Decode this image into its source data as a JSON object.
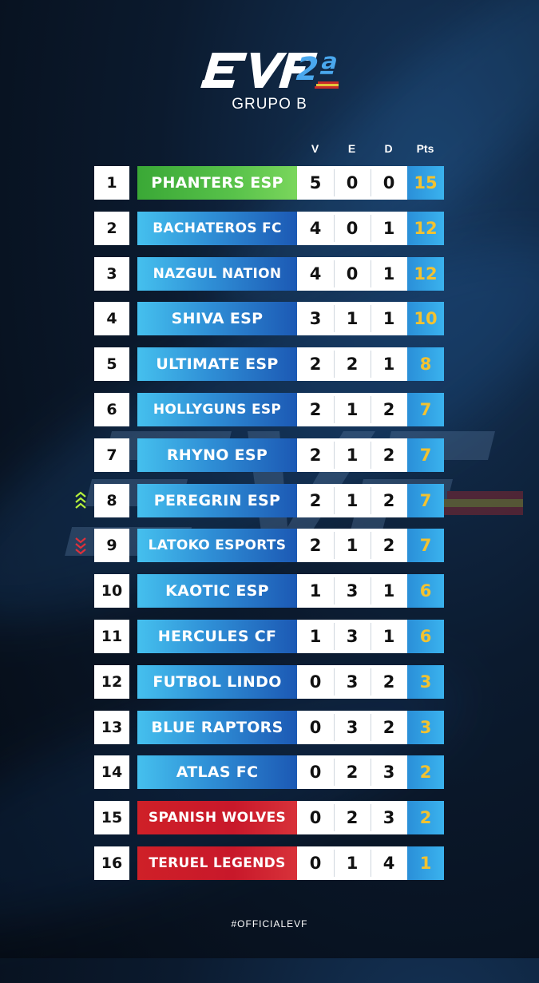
{
  "brand": {
    "logo_text": "EVF",
    "logo_suffix": "2ª"
  },
  "title": "GRUPO B",
  "columns": {
    "v": "V",
    "e": "E",
    "d": "D",
    "pts": "Pts"
  },
  "colors": {
    "promotion": "#58c24a",
    "relegation": "#cf2028",
    "team": "#2f8fd6",
    "points": "#f2c230",
    "arrow_up": "#b6f03c",
    "arrow_down": "#e0303a"
  },
  "standings": [
    {
      "pos": "1",
      "team": "PHANTERS ESP",
      "v": "5",
      "e": "0",
      "d": "0",
      "pts": "15"
    },
    {
      "pos": "2",
      "team": "BACHATEROS FC",
      "v": "4",
      "e": "0",
      "d": "1",
      "pts": "12"
    },
    {
      "pos": "3",
      "team": "NAZGUL NATION",
      "v": "4",
      "e": "0",
      "d": "1",
      "pts": "12"
    },
    {
      "pos": "4",
      "team": "SHIVA ESP",
      "v": "3",
      "e": "1",
      "d": "1",
      "pts": "10"
    },
    {
      "pos": "5",
      "team": "ULTIMATE ESP",
      "v": "2",
      "e": "2",
      "d": "1",
      "pts": "8"
    },
    {
      "pos": "6",
      "team": "HOLLYGUNS ESP",
      "v": "2",
      "e": "1",
      "d": "2",
      "pts": "7"
    },
    {
      "pos": "7",
      "team": "RHYNO ESP",
      "v": "2",
      "e": "1",
      "d": "2",
      "pts": "7"
    },
    {
      "pos": "8",
      "team": "PEREGRIN ESP",
      "v": "2",
      "e": "1",
      "d": "2",
      "pts": "7"
    },
    {
      "pos": "9",
      "team": "LATOKO ESPORTS",
      "v": "2",
      "e": "1",
      "d": "2",
      "pts": "7"
    },
    {
      "pos": "10",
      "team": "KAOTIC ESP",
      "v": "1",
      "e": "3",
      "d": "1",
      "pts": "6"
    },
    {
      "pos": "11",
      "team": "HERCULES CF",
      "v": "1",
      "e": "3",
      "d": "1",
      "pts": "6"
    },
    {
      "pos": "12",
      "team": "FUTBOL LINDO",
      "v": "0",
      "e": "3",
      "d": "2",
      "pts": "3"
    },
    {
      "pos": "13",
      "team": "BLUE RAPTORS",
      "v": "0",
      "e": "3",
      "d": "2",
      "pts": "3"
    },
    {
      "pos": "14",
      "team": "ATLAS FC",
      "v": "0",
      "e": "2",
      "d": "3",
      "pts": "2"
    },
    {
      "pos": "15",
      "team": "SPANISH WOLVES",
      "v": "0",
      "e": "2",
      "d": "3",
      "pts": "2"
    },
    {
      "pos": "16",
      "team": "TERUEL LEGENDS",
      "v": "0",
      "e": "1",
      "d": "4",
      "pts": "1"
    }
  ],
  "movement": {
    "up_row": "8",
    "down_row": "9",
    "up_icon": "triple-chevron-up-icon",
    "down_icon": "triple-chevron-down-icon"
  },
  "hashtag": "#OFFICIALEVF"
}
